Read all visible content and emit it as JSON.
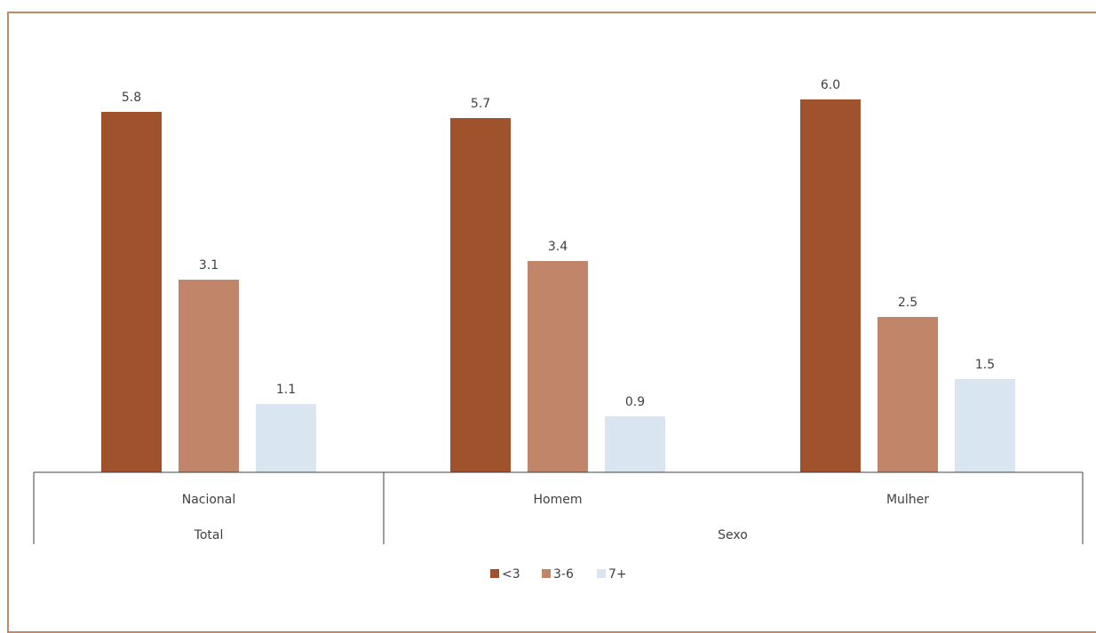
{
  "chart_data": {
    "type": "bar",
    "title": "",
    "xlabel": "",
    "ylabel": "",
    "ylim": [
      0,
      6.5
    ],
    "grid": false,
    "legend_position": "bottom",
    "categories": [
      "Nacional",
      "Homem",
      "Mulher"
    ],
    "groups": [
      {
        "label": "Total",
        "categories": [
          "Nacional"
        ]
      },
      {
        "label": "Sexo",
        "categories": [
          "Homem",
          "Mulher"
        ]
      }
    ],
    "series": [
      {
        "name": "<3",
        "color": "#a0522d",
        "values": [
          5.8,
          5.7,
          6.0
        ],
        "labels": [
          "5.8",
          "5.7",
          "6.0"
        ]
      },
      {
        "name": "3-6",
        "color": "#c1866a",
        "values": [
          3.1,
          3.4,
          2.5
        ],
        "labels": [
          "3.1",
          "3.4",
          "2.5"
        ]
      },
      {
        "name": "7+",
        "color": "#dae5f2",
        "values": [
          1.1,
          0.9,
          1.5
        ],
        "labels": [
          "1.1",
          "0.9",
          "1.5"
        ]
      }
    ]
  }
}
